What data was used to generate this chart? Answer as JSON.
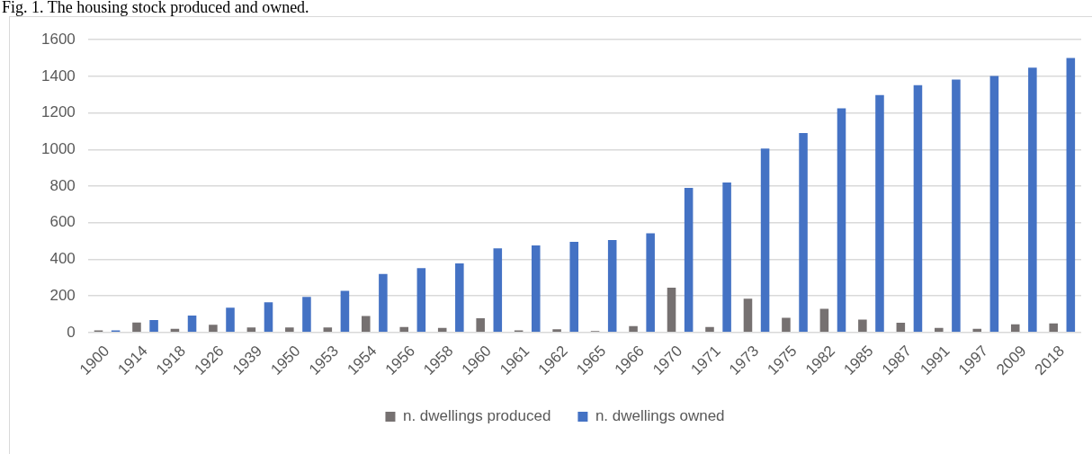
{
  "chart_data": {
    "type": "bar",
    "title": "Fig. 1. The housing stock produced and owned.",
    "categories": [
      "1900",
      "1914",
      "1918",
      "1926",
      "1939",
      "1950",
      "1953",
      "1954",
      "1956",
      "1958",
      "1960",
      "1961",
      "1962",
      "1965",
      "1966",
      "1970",
      "1971",
      "1973",
      "1975",
      "1982",
      "1985",
      "1987",
      "1991",
      "1997",
      "2009",
      "2018"
    ],
    "series": [
      {
        "name": "n. dwellings produced",
        "color": "#767171",
        "values": [
          12,
          55,
          20,
          42,
          28,
          28,
          28,
          90,
          30,
          25,
          78,
          12,
          18,
          8,
          35,
          245,
          30,
          185,
          80,
          130,
          70,
          53,
          25,
          20,
          45,
          50
        ]
      },
      {
        "name": "n. dwellings owned",
        "color": "#4472c4",
        "values": [
          12,
          68,
          92,
          135,
          165,
          195,
          228,
          320,
          352,
          378,
          460,
          476,
          495,
          505,
          542,
          790,
          820,
          1005,
          1090,
          1225,
          1298,
          1352,
          1382,
          1402,
          1448,
          1500
        ]
      }
    ],
    "ylim": [
      0,
      1600
    ],
    "yticks": [
      0,
      200,
      400,
      600,
      800,
      1000,
      1200,
      1400,
      1600
    ],
    "grid": "y",
    "legend": "bottom"
  }
}
